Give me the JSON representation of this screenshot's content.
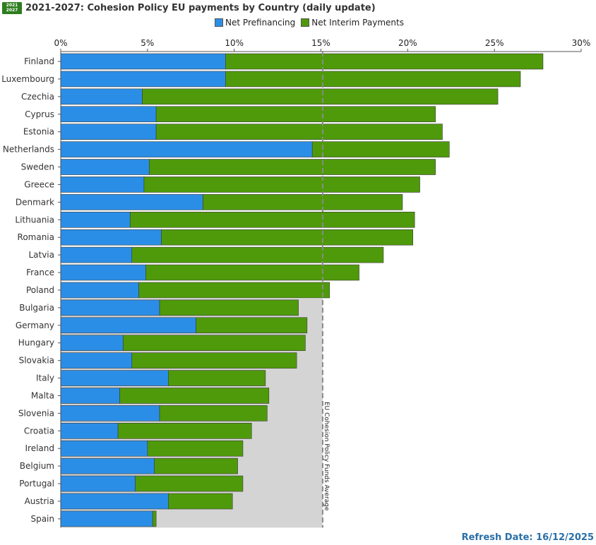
{
  "header": {
    "logo_top": "2021",
    "logo_bottom": "2027",
    "title": "2021-2027: Cohesion Policy EU payments by Country (daily update)"
  },
  "colors": {
    "prefinancing": "#2b8ee6",
    "interim": "#4f9a0a",
    "reference_band": "#d4d4d4"
  },
  "footer": {
    "refresh": "Refresh Date: 16/12/2025"
  },
  "chart_data": {
    "type": "bar",
    "orientation": "horizontal",
    "stacked": true,
    "xlim": [
      0,
      30
    ],
    "xticks": [
      "0%",
      "5%",
      "10%",
      "15%",
      "20%",
      "25%",
      "30%"
    ],
    "categories": [
      "Finland",
      "Luxembourg",
      "Czechia",
      "Cyprus",
      "Estonia",
      "Netherlands",
      "Sweden",
      "Greece",
      "Denmark",
      "Lithuania",
      "Romania",
      "Latvia",
      "France",
      "Poland",
      "Bulgaria",
      "Germany",
      "Hungary",
      "Slovakia",
      "Italy",
      "Malta",
      "Slovenia",
      "Croatia",
      "Ireland",
      "Belgium",
      "Portugal",
      "Austria",
      "Spain"
    ],
    "series": [
      {
        "name": "Net Prefinancing",
        "values": [
          9.5,
          9.5,
          4.7,
          5.5,
          5.5,
          14.5,
          5.1,
          4.8,
          8.2,
          4.0,
          5.8,
          4.1,
          4.9,
          4.5,
          5.7,
          7.8,
          3.6,
          4.1,
          6.2,
          3.4,
          5.7,
          3.3,
          5.0,
          5.4,
          4.3,
          6.2,
          5.3
        ]
      },
      {
        "name": "Net Interim Payments",
        "values": [
          18.3,
          17.0,
          20.5,
          16.1,
          16.5,
          7.9,
          16.5,
          15.9,
          11.5,
          16.4,
          14.5,
          14.5,
          12.3,
          11.0,
          8.0,
          6.4,
          10.5,
          9.5,
          5.6,
          8.6,
          6.2,
          7.7,
          5.5,
          4.8,
          6.2,
          3.7,
          0.2
        ]
      }
    ],
    "reference": {
      "value": 15.1,
      "label": "EU Cohesion Policy Funds Average"
    },
    "legend_position": "top-center",
    "grid": false
  }
}
